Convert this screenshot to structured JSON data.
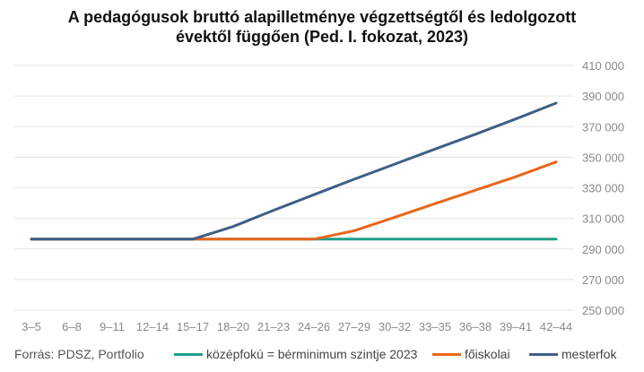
{
  "colors": {
    "kozepfoku": "#1f9e89",
    "foiskolai": "#e8661c",
    "mesterfok": "#3f5f86",
    "grid": "#e3e3e3",
    "axis_text": "#8a8a8a"
  },
  "chart_data": {
    "type": "line",
    "title_line1": "A pedagógusok bruttó alapilletménye végzettségtől és ledolgozott",
    "title_line2": "évektől függően (Ped. I. fokozat, 2023)",
    "categories": [
      "3–5",
      "6–8",
      "9–11",
      "12–14",
      "15–17",
      "18–20",
      "21–23",
      "24–26",
      "27–29",
      "30–32",
      "33–35",
      "36–38",
      "39–41",
      "42–44"
    ],
    "y_ticks": [
      "250 000",
      "270 000",
      "290 000",
      "310 000",
      "330 000",
      "350 000",
      "370 000",
      "390 000",
      "410 000"
    ],
    "ylim": [
      250000,
      410000
    ],
    "y_axis_side": "right",
    "grid": true,
    "series": [
      {
        "name": "középfokú = bérminimum szintje 2023",
        "color_key": "kozepfoku",
        "values": [
          296400,
          296400,
          296400,
          296400,
          296400,
          296400,
          296400,
          296400,
          296400,
          296400,
          296400,
          296400,
          296400,
          296400
        ]
      },
      {
        "name": "főiskolai",
        "color_key": "foiskolai",
        "values": [
          296400,
          296400,
          296400,
          296400,
          296400,
          296400,
          296400,
          296400,
          301900,
          310700,
          319600,
          328400,
          337200,
          346900
        ]
      },
      {
        "name": "mesterfok",
        "color_key": "mesterfok",
        "values": [
          296400,
          296400,
          296400,
          296400,
          296400,
          304700,
          315300,
          325500,
          335600,
          345500,
          355300,
          365000,
          375000,
          385400
        ]
      }
    ],
    "source": "Forrás: PDSZ, Portfolio"
  }
}
